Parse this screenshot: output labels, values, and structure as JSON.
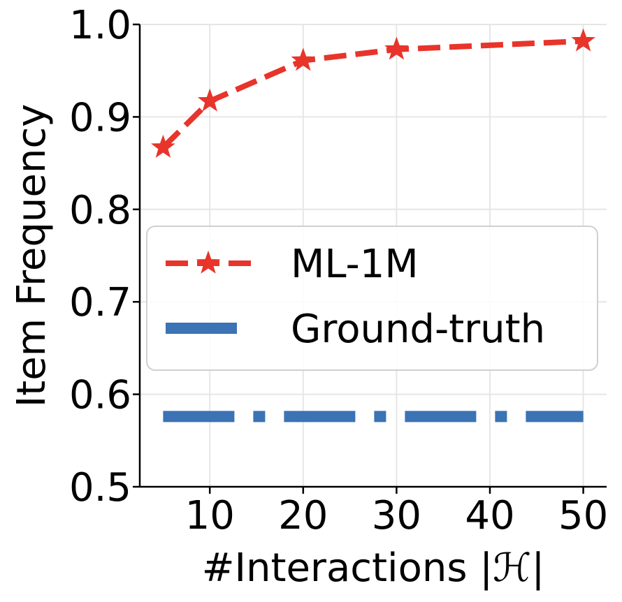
{
  "chart_data": {
    "type": "line",
    "title": "",
    "xlabel": "#Interactions |ℋ|",
    "ylabel": "Item Frequency",
    "xlim": [
      2.5,
      52.5
    ],
    "ylim": [
      0.5,
      1.0
    ],
    "x_ticks": [
      10,
      20,
      30,
      40,
      50
    ],
    "x_tick_labels": [
      "10",
      "20",
      "30",
      "40",
      "50"
    ],
    "y_ticks": [
      0.5,
      0.6,
      0.7,
      0.8,
      0.9,
      1.0
    ],
    "y_tick_labels": [
      "0.5",
      "0.6",
      "0.7",
      "0.8",
      "0.9",
      "1.0"
    ],
    "grid": true,
    "legend_position": "center-right",
    "series": [
      {
        "name": "ML-1M",
        "x": [
          5,
          10,
          20,
          30,
          50
        ],
        "values": [
          0.867,
          0.917,
          0.961,
          0.973,
          0.982
        ],
        "color": "#e8342a",
        "style": "dashed",
        "marker": "star"
      },
      {
        "name": "Ground-truth",
        "x": [
          5,
          50
        ],
        "values": [
          0.576,
          0.576
        ],
        "color": "#3b73b4",
        "style": "dash-dot",
        "marker": "none"
      }
    ]
  }
}
